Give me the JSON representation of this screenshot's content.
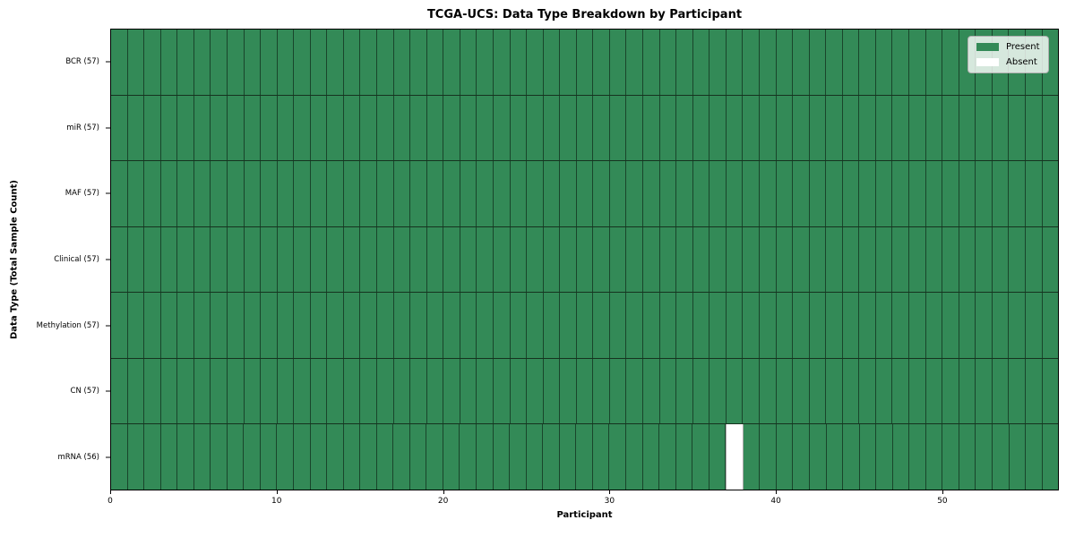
{
  "chart_data": {
    "type": "heatmap",
    "title": "TCGA-UCS: Data Type Breakdown by Participant",
    "xlabel": "Participant",
    "ylabel": "Data Type (Total Sample Count)",
    "n_participants": 57,
    "x_range": [
      0,
      57
    ],
    "x_ticks": [
      0,
      10,
      20,
      30,
      40,
      50
    ],
    "rows": [
      {
        "label": "BCR (57)",
        "data_type": "BCR",
        "sample_count": 57,
        "absent_participants": []
      },
      {
        "label": "miR (57)",
        "data_type": "miR",
        "sample_count": 57,
        "absent_participants": []
      },
      {
        "label": "MAF (57)",
        "data_type": "MAF",
        "sample_count": 57,
        "absent_participants": []
      },
      {
        "label": "Clinical (57)",
        "data_type": "Clinical",
        "sample_count": 57,
        "absent_participants": []
      },
      {
        "label": "Methylation (57)",
        "data_type": "Methylation",
        "sample_count": 57,
        "absent_participants": []
      },
      {
        "label": "CN (57)",
        "data_type": "CN",
        "sample_count": 57,
        "absent_participants": []
      },
      {
        "label": "mRNA (56)",
        "data_type": "mRNA",
        "sample_count": 56,
        "absent_participants": [
          37
        ]
      }
    ],
    "legend": [
      {
        "label": "Present",
        "color": "#338a57"
      },
      {
        "label": "Absent",
        "color": "#ffffff"
      }
    ],
    "legend_position": "upper right",
    "grid": true,
    "colors": {
      "present": "#338a57",
      "absent": "#ffffff",
      "cell_edge": "rgba(0,0,0,0.5)",
      "row_divider": "#16331f",
      "axis": "#000000",
      "legend_border": "#b0b0b0"
    }
  }
}
